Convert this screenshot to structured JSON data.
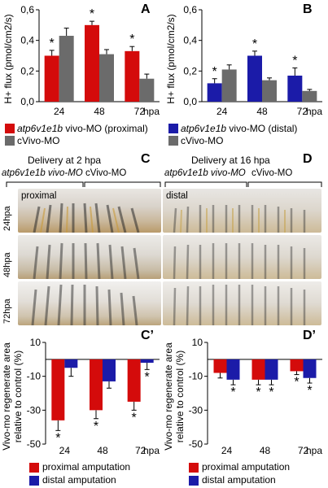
{
  "panels": {
    "A": {
      "letter": "A"
    },
    "B": {
      "letter": "B"
    },
    "C": {
      "letter": "C",
      "title": "Delivery at 2 hpa",
      "group_left": "atp6v1e1b vivo-MO",
      "group_right": "cVivo-MO",
      "region": "proximal"
    },
    "D": {
      "letter": "D",
      "title": "Delivery at 16 hpa",
      "group_left": "atp6v1e1b vivo-MO",
      "group_right": "cVivo-MO",
      "region": "distal"
    },
    "Cp": {
      "letter": "C’"
    },
    "Dp": {
      "letter": "D’"
    }
  },
  "photo_rows": [
    "24hpa",
    "48hpa",
    "72hpa"
  ],
  "legends": {
    "A": [
      {
        "label_italic": "atp6v1e1b",
        "label_rest": " vivo-MO (proximal)",
        "color": "#d40b0b"
      },
      {
        "label": "cVivo-MO",
        "color": "#6b6b6b"
      }
    ],
    "B": [
      {
        "label_italic": "atp6v1e1b",
        "label_rest": " vivo-MO (distal)",
        "color": "#1b1ba8"
      },
      {
        "label": "cVivo-MO",
        "color": "#6b6b6b"
      }
    ],
    "Cp": [
      {
        "label": "proximal amputation",
        "color": "#d40b0b"
      },
      {
        "label": "distal amputation",
        "color": "#1b1ba8"
      }
    ],
    "Dp": [
      {
        "label": "proximal amputation",
        "color": "#d40b0b"
      },
      {
        "label": "distal amputation",
        "color": "#1b1ba8"
      }
    ]
  },
  "chart_data": [
    {
      "id": "A",
      "type": "bar",
      "categories": [
        "24",
        "48",
        "72"
      ],
      "x_unit": "hpa",
      "ylabel": "H+ flux (pmol/cm2/s)",
      "yticks": [
        "0,0",
        "0,2",
        "0,4",
        "0,6"
      ],
      "ylim": [
        0,
        0.6
      ],
      "series": [
        {
          "color": "#d40b0b",
          "values": [
            0.3,
            0.5,
            0.33
          ],
          "errors": [
            0.035,
            0.025,
            0.03
          ],
          "stars": [
            "*",
            "*",
            "*"
          ]
        },
        {
          "color": "#6b6b6b",
          "values": [
            0.43,
            0.31,
            0.15
          ],
          "errors": [
            0.05,
            0.03,
            0.03
          ],
          "stars": [
            "",
            "",
            ""
          ]
        }
      ]
    },
    {
      "id": "B",
      "type": "bar",
      "categories": [
        "24",
        "48",
        "72"
      ],
      "x_unit": "hpa",
      "ylabel": "H+ flux (pmol/cm2/s)",
      "yticks": [
        "0,0",
        "0,2",
        "0,4",
        "0,6"
      ],
      "ylim": [
        0,
        0.6
      ],
      "series": [
        {
          "color": "#1b1ba8",
          "values": [
            0.12,
            0.3,
            0.17
          ],
          "errors": [
            0.03,
            0.03,
            0.05
          ],
          "stars": [
            "*",
            "*",
            "*"
          ]
        },
        {
          "color": "#6b6b6b",
          "values": [
            0.21,
            0.14,
            0.07
          ],
          "errors": [
            0.03,
            0.015,
            0.01
          ],
          "stars": [
            "",
            "",
            ""
          ]
        }
      ]
    },
    {
      "id": "Cp",
      "type": "bar",
      "categories": [
        "24",
        "48",
        "72"
      ],
      "x_unit": "hpa",
      "ylabel": "Vivo-mo regenerate area relative to control (%)",
      "yticks": [
        "10",
        "-10",
        "-30",
        "-50"
      ],
      "ylim": [
        -50,
        10
      ],
      "series": [
        {
          "color": "#d40b0b",
          "values": [
            -36,
            -30,
            -25
          ],
          "errors": [
            6,
            5,
            5
          ],
          "stars": [
            "*",
            "*",
            "*"
          ]
        },
        {
          "color": "#1b1ba8",
          "values": [
            -5,
            -13,
            -2
          ],
          "errors": [
            5,
            4,
            4
          ],
          "stars": [
            "",
            "",
            "*"
          ]
        }
      ]
    },
    {
      "id": "Dp",
      "type": "bar",
      "categories": [
        "24",
        "48",
        "72"
      ],
      "x_unit": "hpa",
      "ylabel": "Vivo-mo regenerate area relative to control (%)",
      "yticks": [
        "10",
        "-10",
        "-30",
        "-50"
      ],
      "ylim": [
        -50,
        10
      ],
      "series": [
        {
          "color": "#d40b0b",
          "values": [
            -8,
            -12,
            -7
          ],
          "errors": [
            3,
            3,
            2
          ],
          "stars": [
            "",
            "*",
            "*"
          ]
        },
        {
          "color": "#1b1ba8",
          "values": [
            -12,
            -12,
            -11
          ],
          "errors": [
            3,
            3,
            3
          ],
          "stars": [
            "*",
            "*",
            "*"
          ]
        }
      ]
    }
  ]
}
